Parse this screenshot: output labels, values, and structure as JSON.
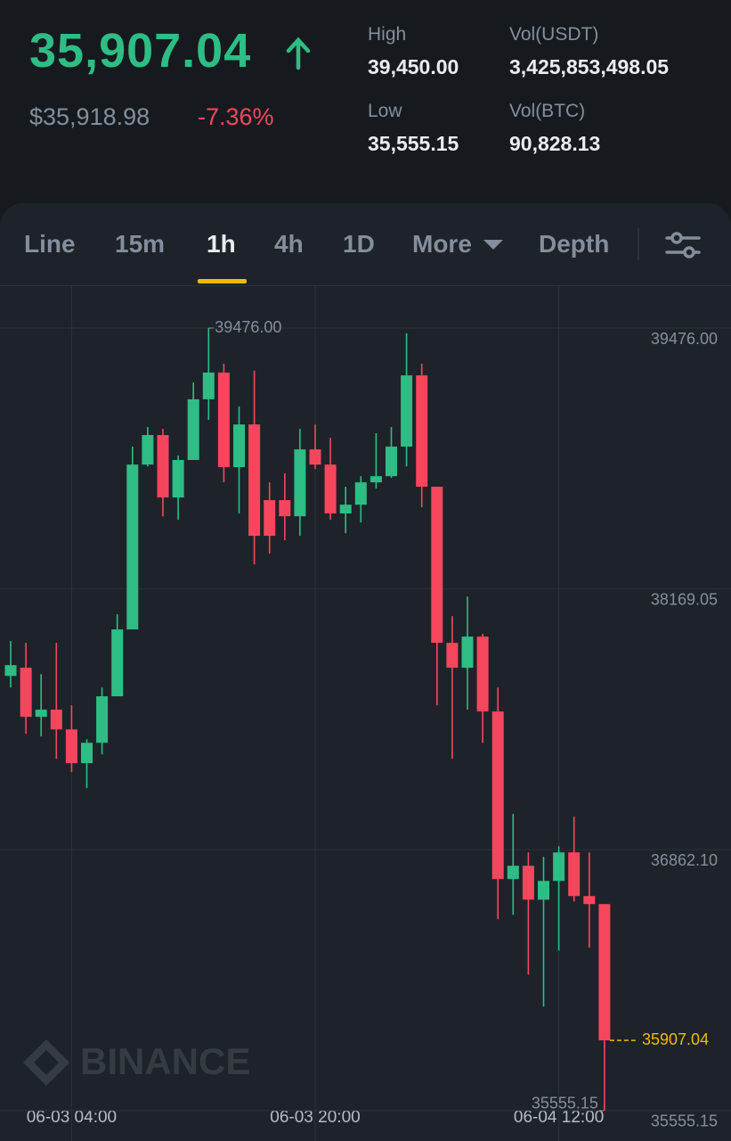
{
  "header": {
    "price": "35,907.04",
    "fiat_price": "$35,918.98",
    "change": "-7.36%",
    "stats": [
      {
        "label": "High",
        "value": "39,450.00"
      },
      {
        "label": "Vol(USDT)",
        "value": "3,425,853,498.05"
      },
      {
        "label": "Low",
        "value": "35,555.15"
      },
      {
        "label": "Vol(BTC)",
        "value": "90,828.13"
      }
    ]
  },
  "tabs": {
    "items": [
      "Line",
      "15m",
      "1h",
      "4h",
      "1D",
      "More",
      "Depth"
    ],
    "active": 2
  },
  "chart_data": {
    "type": "candlestick",
    "watermark": "BINANCE",
    "categories": [
      null,
      null,
      null,
      null,
      "06-03 04:00",
      null,
      null,
      null,
      null,
      null,
      null,
      null,
      null,
      null,
      null,
      null,
      null,
      null,
      null,
      null,
      "06-03 20:00",
      null,
      null,
      null,
      null,
      null,
      null,
      null,
      null,
      null,
      null,
      null,
      null,
      null,
      null,
      null,
      "06-04 12:00",
      null,
      null,
      null
    ],
    "open": [
      37733,
      37774,
      37528,
      37564,
      37465,
      37296,
      37398,
      37631,
      37966,
      38792,
      38940,
      38627,
      38815,
      39119,
      39253,
      38779,
      38993,
      38614,
      38614,
      38533,
      38868,
      38792,
      38547,
      38591,
      38703,
      38734,
      38882,
      39239,
      38681,
      37899,
      37774,
      37930,
      37555,
      36715,
      36782,
      36612,
      36706,
      36849,
      36630,
      36590
    ],
    "high": [
      37908,
      37899,
      37742,
      37899,
      37586,
      37416,
      37675,
      38042,
      38882,
      38980,
      38971,
      38837,
      39203,
      39476,
      39297,
      39083,
      39262,
      38703,
      38748,
      38971,
      38993,
      38926,
      38681,
      38734,
      38949,
      38980,
      39450,
      39297,
      38681,
      38033,
      38131,
      37944,
      37675,
      37041,
      36849,
      36827,
      36880,
      37028,
      36849,
      36590
    ],
    "low": [
      37675,
      37443,
      37430,
      37318,
      37251,
      37171,
      37340,
      37631,
      37966,
      38783,
      38533,
      38515,
      38815,
      39016,
      38703,
      38547,
      38292,
      38346,
      38413,
      38435,
      38770,
      38515,
      38448,
      38502,
      38672,
      38725,
      38783,
      38578,
      37586,
      37318,
      37564,
      37398,
      36514,
      36536,
      36237,
      36076,
      36357,
      36603,
      36371,
      35555.15
    ],
    "close": [
      37787,
      37528,
      37564,
      37465,
      37296,
      37398,
      37631,
      37966,
      38792,
      38940,
      38627,
      38815,
      39119,
      39253,
      38779,
      38993,
      38435,
      38435,
      38533,
      38868,
      38792,
      38547,
      38591,
      38703,
      38734,
      38882,
      39239,
      38681,
      37899,
      37774,
      37930,
      37555,
      36715,
      36782,
      36612,
      36706,
      36849,
      36630,
      36590,
      35907.04
    ],
    "up_color": "#2ebd85",
    "down_color": "#f6465d",
    "ylim": [
      35443,
      39686
    ],
    "yticks": [
      {
        "value": 39476,
        "label": "39476.00"
      },
      {
        "value": 38169.05,
        "label": "38169.05"
      },
      {
        "value": 36862.1,
        "label": "36862.10"
      },
      {
        "value": 35555.15,
        "label": "35555.15"
      }
    ],
    "grid": true,
    "annotations": [
      {
        "value": 39476,
        "label": "39476.00"
      },
      {
        "value": 35555.15,
        "label": "35555.15"
      }
    ],
    "last_price": {
      "value": 35907.04,
      "label": "35907.04",
      "color": "#f0b90b"
    }
  }
}
